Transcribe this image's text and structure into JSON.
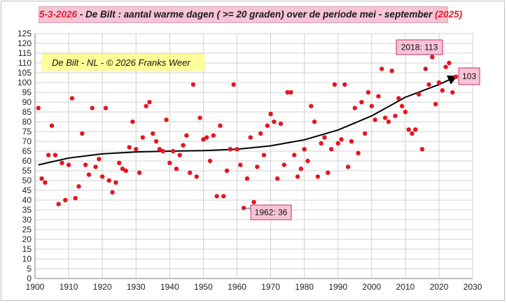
{
  "header": {
    "title_date": "5-3-2026",
    "title_sep": " - ",
    "title_main": "De Bilt : aantal warme dagen ( >= 20 graden) over de periode mei - september",
    "title_year": "(2025)"
  },
  "colors": {
    "points": "#e8141e",
    "trend": "#000000",
    "grid": "#d0d0d0",
    "title_bg": "#f7c3d6",
    "brand_bg": "#ffff99",
    "annotation_bg": "#f7c3d6",
    "annotation_border": "#c0306a"
  },
  "chart_data": {
    "type": "scatter",
    "title": "De Bilt : aantal warme dagen ( >= 20 graden) over de periode mei - september",
    "xlim": [
      1900,
      2030
    ],
    "ylim": [
      0,
      125
    ],
    "x_ticks": [
      1900,
      1910,
      1920,
      1930,
      1940,
      1950,
      1960,
      1970,
      1980,
      1990,
      2000,
      2010,
      2020,
      2030
    ],
    "y_ticks": [
      0,
      5,
      10,
      15,
      20,
      25,
      30,
      35,
      40,
      45,
      50,
      55,
      60,
      65,
      70,
      75,
      80,
      85,
      90,
      95,
      100,
      105,
      110,
      115,
      120,
      125
    ],
    "grid": true,
    "brand_label": "De Bilt - NL  -  © 2026 Franks Weer",
    "series": [
      {
        "marker": "dot",
        "points": [
          [
            1901,
            87
          ],
          [
            1902,
            51
          ],
          [
            1903,
            49
          ],
          [
            1904,
            63
          ],
          [
            1905,
            78
          ],
          [
            1906,
            63
          ],
          [
            1907,
            38
          ],
          [
            1908,
            59
          ],
          [
            1909,
            40
          ],
          [
            1910,
            58
          ],
          [
            1911,
            92
          ],
          [
            1912,
            41
          ],
          [
            1913,
            47
          ],
          [
            1914,
            74
          ],
          [
            1915,
            58
          ],
          [
            1916,
            53
          ],
          [
            1917,
            87
          ],
          [
            1918,
            57
          ],
          [
            1919,
            61
          ],
          [
            1920,
            52
          ],
          [
            1921,
            87
          ],
          [
            1922,
            50
          ],
          [
            1923,
            44
          ],
          [
            1924,
            49
          ],
          [
            1925,
            59
          ],
          [
            1926,
            56
          ],
          [
            1927,
            55
          ],
          [
            1928,
            67
          ],
          [
            1929,
            80
          ],
          [
            1930,
            66
          ],
          [
            1931,
            54
          ],
          [
            1932,
            72
          ],
          [
            1933,
            88
          ],
          [
            1934,
            90
          ],
          [
            1935,
            74
          ],
          [
            1936,
            70
          ],
          [
            1937,
            66
          ],
          [
            1938,
            65
          ],
          [
            1939,
            81
          ],
          [
            1940,
            59
          ],
          [
            1941,
            65
          ],
          [
            1942,
            56
          ],
          [
            1943,
            63
          ],
          [
            1944,
            68
          ],
          [
            1945,
            73
          ],
          [
            1946,
            54
          ],
          [
            1947,
            99
          ],
          [
            1948,
            52
          ],
          [
            1949,
            82
          ],
          [
            1950,
            71
          ],
          [
            1951,
            72
          ],
          [
            1952,
            60
          ],
          [
            1953,
            73
          ],
          [
            1954,
            42
          ],
          [
            1955,
            78
          ],
          [
            1956,
            42
          ],
          [
            1957,
            55
          ],
          [
            1958,
            66
          ],
          [
            1959,
            99
          ],
          [
            1960,
            66
          ],
          [
            1961,
            58
          ],
          [
            1962,
            36
          ],
          [
            1963,
            51
          ],
          [
            1964,
            72
          ],
          [
            1965,
            39
          ],
          [
            1966,
            57
          ],
          [
            1967,
            74
          ],
          [
            1968,
            63
          ],
          [
            1969,
            78
          ],
          [
            1970,
            84
          ],
          [
            1971,
            80
          ],
          [
            1972,
            51
          ],
          [
            1973,
            79
          ],
          [
            1974,
            58
          ],
          [
            1975,
            95
          ],
          [
            1976,
            95
          ],
          [
            1977,
            63
          ],
          [
            1978,
            52
          ],
          [
            1979,
            56
          ],
          [
            1980,
            66
          ],
          [
            1981,
            60
          ],
          [
            1982,
            88
          ],
          [
            1983,
            80
          ],
          [
            1984,
            52
          ],
          [
            1985,
            69
          ],
          [
            1986,
            72
          ],
          [
            1987,
            54
          ],
          [
            1988,
            66
          ],
          [
            1989,
            99
          ],
          [
            1990,
            69
          ],
          [
            1991,
            71
          ],
          [
            1992,
            99
          ],
          [
            1993,
            57
          ],
          [
            1994,
            70
          ],
          [
            1995,
            87
          ],
          [
            1996,
            64
          ],
          [
            1997,
            90
          ],
          [
            1998,
            74
          ],
          [
            1999,
            95
          ],
          [
            2000,
            88
          ],
          [
            2001,
            81
          ],
          [
            2002,
            93
          ],
          [
            2003,
            107
          ],
          [
            2004,
            82
          ],
          [
            2005,
            80
          ],
          [
            2006,
            106
          ],
          [
            2007,
            83
          ],
          [
            2008,
            92
          ],
          [
            2009,
            88
          ],
          [
            2010,
            85
          ],
          [
            2011,
            76
          ],
          [
            2012,
            74
          ],
          [
            2013,
            76
          ],
          [
            2014,
            94
          ],
          [
            2015,
            66
          ],
          [
            2016,
            107
          ],
          [
            2017,
            99
          ],
          [
            2018,
            113
          ],
          [
            2019,
            89
          ],
          [
            2020,
            100
          ],
          [
            2021,
            96
          ],
          [
            2022,
            108
          ],
          [
            2023,
            110
          ],
          [
            2024,
            95
          ],
          [
            2025,
            103
          ]
        ]
      }
    ],
    "trendline": {
      "marker": "arrow",
      "points": [
        [
          1901,
          58
        ],
        [
          1910,
          61.5
        ],
        [
          1920,
          63.6
        ],
        [
          1930,
          64.6
        ],
        [
          1940,
          65.0
        ],
        [
          1950,
          65.3
        ],
        [
          1960,
          66.0
        ],
        [
          1970,
          67.7
        ],
        [
          1980,
          70.8
        ],
        [
          1990,
          75.8
        ],
        [
          2000,
          83.0
        ],
        [
          2010,
          92.5
        ],
        [
          2020,
          99.0
        ],
        [
          2025,
          103
        ]
      ]
    },
    "annotations": [
      {
        "label": "2018: 113",
        "x": 2018,
        "y": 113
      },
      {
        "label": "1962: 36",
        "x": 1962,
        "y": 36
      },
      {
        "label": "103",
        "x": 2025,
        "y": 103
      }
    ]
  }
}
